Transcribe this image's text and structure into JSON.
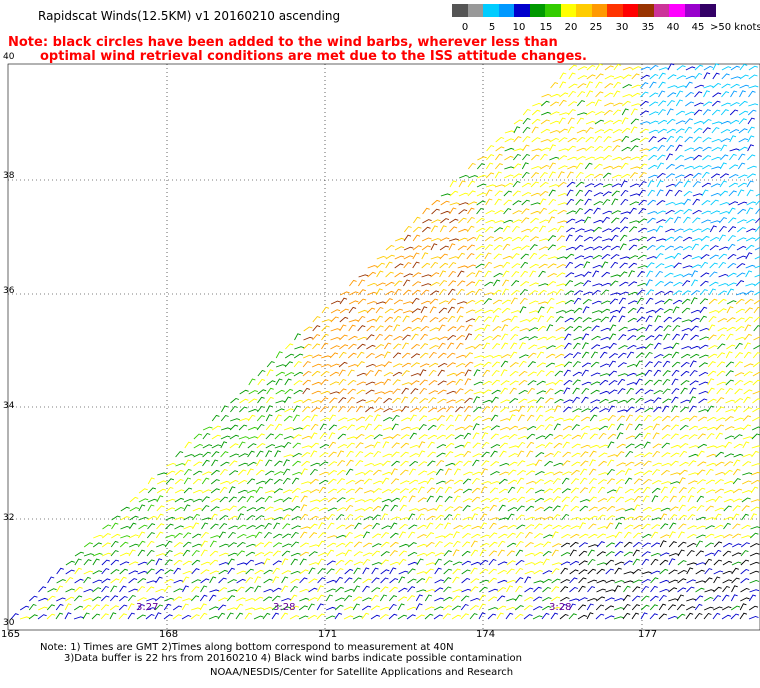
{
  "title": "Rapidscat Winds(12.5KM) v1 20160210 ascending",
  "note_line1": "Note: black circles have been added to the wind barbs, wherever less than",
  "note_line2": "optimal wind retrieval conditions are met due to the ISS attitude changes.",
  "legend": {
    "units": "knots",
    "swatches": [
      {
        "color": "#555555"
      },
      {
        "color": "#999999"
      },
      {
        "color": "#00ccff"
      },
      {
        "color": "#0099ff"
      },
      {
        "color": "#0000cc"
      },
      {
        "color": "#009900"
      },
      {
        "color": "#33cc00"
      },
      {
        "color": "#ffff00"
      },
      {
        "color": "#ffcc00"
      },
      {
        "color": "#ff9900"
      },
      {
        "color": "#ff3300"
      },
      {
        "color": "#ff0000"
      },
      {
        "color": "#993300"
      },
      {
        "color": "#cc3399"
      },
      {
        "color": "#ff00ff"
      },
      {
        "color": "#9900cc"
      },
      {
        "color": "#330066"
      }
    ],
    "labels": [
      "0",
      "5",
      "10",
      "15",
      "20",
      "25",
      "30",
      "35",
      "40",
      "45",
      ">50 knots"
    ]
  },
  "axes": {
    "lat_labels": [
      "40",
      "38",
      "36",
      "34",
      "32",
      "30"
    ],
    "lon_labels": [
      "165",
      "168",
      "171",
      "174",
      "177"
    ]
  },
  "time_labels": [
    "3:27",
    "3:28",
    "3:28"
  ],
  "footer": {
    "line1": "Note: 1) Times are GMT 2)Times along bottom correspond to measurement at 40N",
    "line2": "3)Data buffer is 22 hrs from 20160210 4) Black wind barbs indicate possible contamination",
    "line3": "NOAA/NESDIS/Center for Satellite Applications and Research"
  }
}
